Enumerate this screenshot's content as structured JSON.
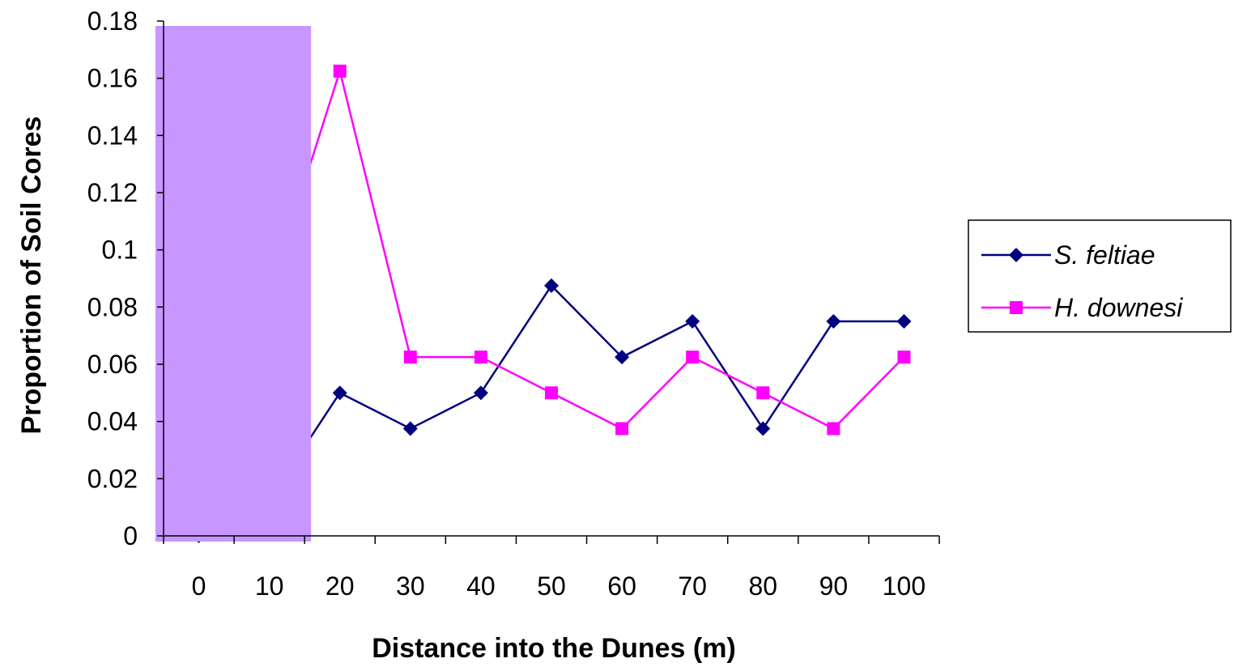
{
  "chart_data": {
    "type": "line",
    "title": "",
    "xlabel": "Distance into the Dunes (m)",
    "ylabel": "Proportion of Soil Cores",
    "categories": [
      "0",
      "10",
      "20",
      "30",
      "40",
      "50",
      "60",
      "70",
      "80",
      "90",
      "100"
    ],
    "y_ticks": [
      "0",
      "0.02",
      "0.04",
      "0.06",
      "0.08",
      "0.1",
      "0.12",
      "0.14",
      "0.16",
      "0.18"
    ],
    "ylim": [
      0,
      0.18
    ],
    "grid": false,
    "legend_position": "right",
    "series": [
      {
        "name": "S. feltiae",
        "color": "#000080",
        "marker": "diamond",
        "values": [
          0.0,
          0.0125,
          0.05,
          0.0375,
          0.05,
          0.0875,
          0.0625,
          0.075,
          0.0375,
          0.075,
          0.075
        ]
      },
      {
        "name": "H. downesi",
        "color": "#ff00ff",
        "marker": "square",
        "values": [
          0.07,
          0.085,
          0.1625,
          0.0625,
          0.0625,
          0.05,
          0.0375,
          0.0625,
          0.05,
          0.0375,
          0.0625
        ]
      }
    ],
    "overlay": {
      "description": "",
      "color": "#c896ff",
      "covers_categories": [
        "0",
        "10"
      ]
    }
  }
}
